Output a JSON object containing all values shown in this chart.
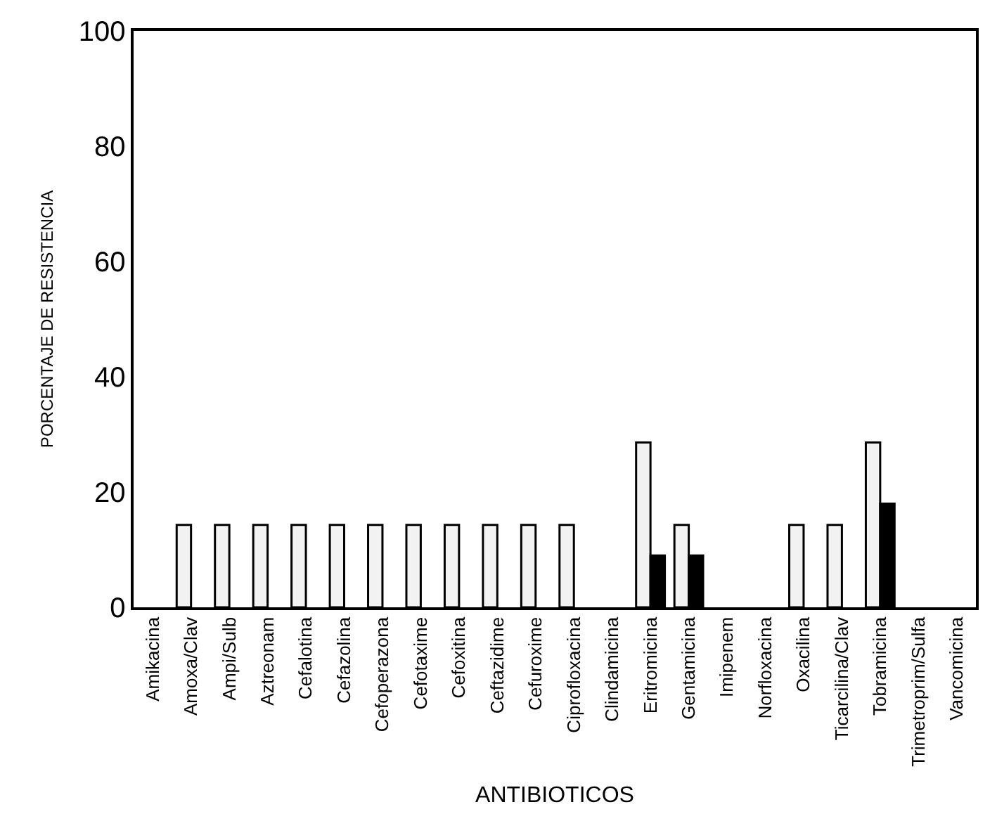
{
  "chart_data": {
    "type": "bar",
    "xlabel": "ANTIBIOTICOS",
    "ylabel": "PORCENTAJE DE RESISTENCIA",
    "categories": [
      "Amikacina",
      "Amoxa/Clav",
      "Ampi/Sulb",
      "Aztreonam",
      "Cefalotina",
      "Cefazolina",
      "Cefoperazona",
      "Cefotaxime",
      "Cefoxitina",
      "Ceftazidime",
      "Cefuroxime",
      "Ciprofloxacina",
      "Clindamicina",
      "Eritromicina",
      "Gentamicina",
      "Imipenem",
      "Norfloxacina",
      "Oxacilina",
      "Ticarcilina/Clav",
      "Tobramicina",
      "Trimetroprim/Sulfa",
      "Vancomicina"
    ],
    "series": [
      {
        "color": "#f2f2f2",
        "values": [
          0,
          14.3,
          14.3,
          14.3,
          14.3,
          14.3,
          14.3,
          14.3,
          14.3,
          14.3,
          14.3,
          14.3,
          0,
          28.6,
          14.3,
          0,
          0,
          14.3,
          14.3,
          28.6,
          0,
          0
        ]
      },
      {
        "color": "#000000",
        "values": [
          0,
          0,
          0,
          0,
          0,
          0,
          0,
          0,
          0,
          0,
          0,
          0,
          0,
          9,
          9,
          0,
          0,
          0,
          0,
          18,
          0,
          0
        ]
      }
    ],
    "ylim": [
      0,
      100
    ],
    "yticks": [
      0,
      20,
      40,
      60,
      80,
      100
    ],
    "grid": false
  }
}
